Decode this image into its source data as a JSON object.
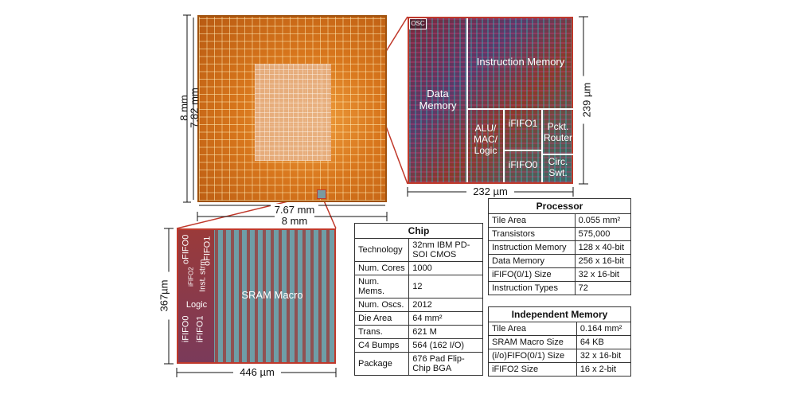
{
  "die": {
    "dim_8mm_v": "8 mm",
    "dim_782mm": "7.82 mm",
    "dim_767mm": "7.67 mm",
    "dim_8mm_h": "8 mm"
  },
  "tile": {
    "osc": "OSC",
    "data_memory": "Data Memory",
    "instruction_memory": "Instruction Memory",
    "alu": "ALU/ MAC/ Logic",
    "ififo1": "iFIFO1",
    "ififo0": "iFIFO0",
    "pckt_router": "Pckt. Router",
    "circ_swt": "Circ. Swt.",
    "dim_height": "239 µm",
    "dim_width": "232 µm"
  },
  "sram": {
    "label": "SRAM Macro",
    "ofifo0": "oFIFO0",
    "ofifo1": "oFIFO1",
    "ififo2": "iFIFO2",
    "inst_strm": "Inst. strm.",
    "logic": "Logic",
    "ififo0": "iFIFO0",
    "ififo1": "iFIFO1",
    "dim_height": "367µm",
    "dim_width": "446 µm"
  },
  "chip_table": {
    "title": "Chip",
    "rows": [
      {
        "k": "Technology",
        "v": "32nm IBM PD-SOI CMOS"
      },
      {
        "k": "Num. Cores",
        "v": "1000"
      },
      {
        "k": "Num. Mems.",
        "v": "12"
      },
      {
        "k": "Num. Oscs.",
        "v": "2012"
      },
      {
        "k": "Die Area",
        "v": "64 mm²"
      },
      {
        "k": "Trans.",
        "v": "621 M"
      },
      {
        "k": "C4 Bumps",
        "v": "564 (162 I/O)"
      },
      {
        "k": "Package",
        "v": "676 Pad Flip-Chip BGA"
      }
    ]
  },
  "processor_table": {
    "title": "Processor",
    "rows": [
      {
        "k": "Tile Area",
        "v": "0.055 mm²"
      },
      {
        "k": "Transistors",
        "v": "575,000"
      },
      {
        "k": "Instruction Memory",
        "v": "128 x 40-bit"
      },
      {
        "k": "Data Memory",
        "v": "256 x 16-bit"
      },
      {
        "k": "iFIFO(0/1) Size",
        "v": "32 x 16-bit"
      },
      {
        "k": "Instruction Types",
        "v": "72"
      }
    ]
  },
  "memory_table": {
    "title": "Independent Memory",
    "rows": [
      {
        "k": "Tile Area",
        "v": "0.164 mm²"
      },
      {
        "k": "SRAM Macro Size",
        "v": "64 KB"
      },
      {
        "k": "(i/o)FIFO(0/1) Size",
        "v": "32 x 16-bit"
      },
      {
        "k": "iFIFO2 Size",
        "v": "16 x 2-bit"
      }
    ]
  },
  "colors": {
    "zoom_frame": "#c0392b",
    "die_orange": "#d8761c"
  }
}
